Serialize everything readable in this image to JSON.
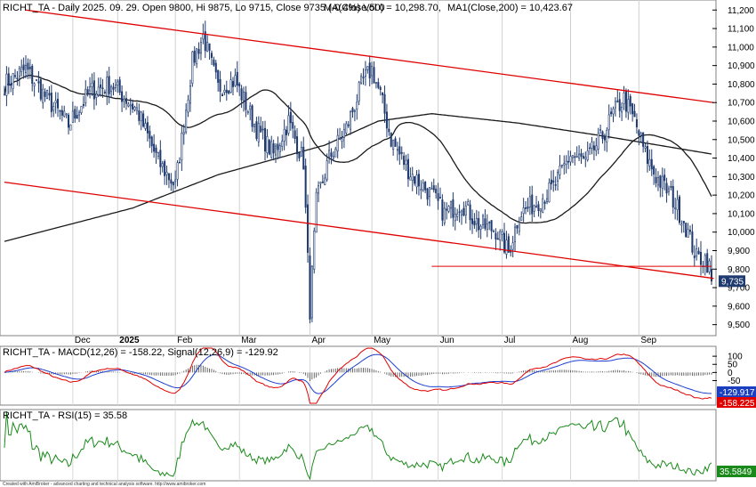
{
  "price_panel": {
    "title": "RICHT_TA - Daily 2025. 09. 29. Open 9800, Hi 9875, Lo 9715, Close 9735 (-0.4%) Vol 0",
    "ma50_label": "MA(Close,50) = 10,298.70,",
    "ma200_label": "MA1(Close,200) = 10,423.67",
    "last_price_badge": "9,735"
  },
  "macd_panel": {
    "title": "RICHT_TA - MACD(12,26) = -158.22, Signal(12,26,9) = -129.92",
    "signal_badge": "-129.917",
    "macd_badge": "-158.225"
  },
  "rsi_panel": {
    "title": "RICHT_TA - RSI(15) = 35.58",
    "rsi_badge": "35.5849"
  },
  "footer": {
    "credit": "Created with AmiBroker - advanced charting and technical analysis software. http://www.amibroker.com"
  },
  "colors": {
    "up_candle": "#ffffff",
    "down_candle": "#1f3a6e",
    "candle_edge": "#1f3a6e",
    "ma": "#1a1a1a",
    "channel": "#e00000",
    "macd": "#e00000",
    "signal": "#1e3fd0",
    "rsi": "#1a8a1a",
    "macd_badge": "#e00000",
    "signal_badge": "#1a3fc0",
    "rsi_badge": "#1a8a1a"
  },
  "chart_data": [
    {
      "type": "candlestick",
      "x_ticks": [
        "Dec",
        "2025",
        "Feb",
        "Mar",
        "Apr",
        "May",
        "Jun",
        "Jul",
        "Aug",
        "Sep"
      ],
      "x_tick_index": [
        32,
        53,
        80,
        110,
        143,
        172,
        203,
        233,
        265,
        297
      ],
      "n_bars": 332,
      "y_ticks": [
        "9,500",
        "9,600",
        "9,700",
        "9,800",
        "9,900",
        "10,000",
        "10,100",
        "10,200",
        "10,300",
        "10,400",
        "10,500",
        "10,600",
        "10,700",
        "10,800",
        "10,900",
        "11,000",
        "11,100",
        "11,200"
      ],
      "ylim": [
        9455,
        11235
      ],
      "last": {
        "open": 9800,
        "high": 9875,
        "low": 9715,
        "close": 9735
      },
      "ma50_last": 10298.7,
      "ma200_last": 10423.67,
      "horizontal_support": 9815,
      "channel_upper": [
        [
          10,
          11200
        ],
        [
          332,
          10700
        ]
      ],
      "channel_lower": [
        [
          0,
          10270
        ],
        [
          332,
          9750
        ]
      ]
    },
    {
      "type": "line",
      "name": "MACD(12,26)",
      "y_ticks": [
        "100",
        "50",
        "0",
        "-50"
      ],
      "ylim": [
        -190,
        150
      ],
      "macd_last": -158.22,
      "signal_last": -129.92
    },
    {
      "type": "line",
      "name": "RSI(15)",
      "ylim": [
        20,
        85
      ],
      "rsi_last": 35.58
    }
  ]
}
